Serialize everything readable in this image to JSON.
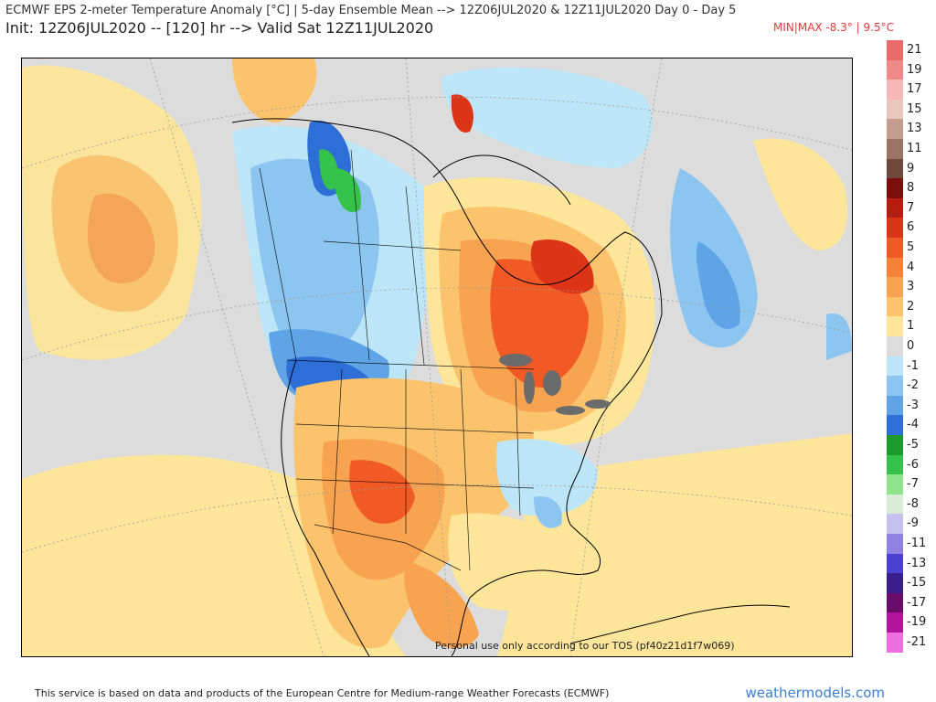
{
  "header": {
    "title": "ECMWF EPS 2-meter Temperature Anomaly [°C] | 5-day Ensemble Mean --> 12Z06JUL2020 & 12Z11JUL2020   Day 0 - Day 5",
    "subtitle": "Init: 12Z06JUL2020 -- [120] hr --> Valid Sat 12Z11JUL2020",
    "minmax": "MIN|MAX -8.3° | 9.5°C"
  },
  "map": {
    "watermark": "Personal use only according to our TOS (pf40z21d1f7w069)",
    "colors": {
      "land_neutral": "#dcdcdc",
      "ocean_neutral": "#dcdcdc",
      "border": "#000000",
      "lake": "#6b6b6b"
    }
  },
  "legend": {
    "entries": [
      {
        "label": "21",
        "color": "#e86a6a"
      },
      {
        "label": "19",
        "color": "#f08a8a"
      },
      {
        "label": "17",
        "color": "#f6b7b7"
      },
      {
        "label": "15",
        "color": "#e9c7bd"
      },
      {
        "label": "13",
        "color": "#c49d8e"
      },
      {
        "label": "11",
        "color": "#9c7466"
      },
      {
        "label": "9",
        "color": "#6f4a3c"
      },
      {
        "label": "8",
        "color": "#7d0e0e"
      },
      {
        "label": "7",
        "color": "#b51c12"
      },
      {
        "label": "6",
        "color": "#dd3418"
      },
      {
        "label": "5",
        "color": "#f25a25"
      },
      {
        "label": "4",
        "color": "#f58237"
      },
      {
        "label": "3",
        "color": "#f7a34f"
      },
      {
        "label": "2",
        "color": "#fbc36c"
      },
      {
        "label": "1",
        "color": "#fde69a"
      },
      {
        "label": "0",
        "color": "#dcdcdc"
      },
      {
        "label": "-1",
        "color": "#bce6f7"
      },
      {
        "label": "-2",
        "color": "#8cc6f0"
      },
      {
        "label": "-3",
        "color": "#5ea4e6"
      },
      {
        "label": "-4",
        "color": "#2d6ed7"
      },
      {
        "label": "-5",
        "color": "#1c9a2c"
      },
      {
        "label": "-6",
        "color": "#35c24a"
      },
      {
        "label": "-7",
        "color": "#8fe38c"
      },
      {
        "label": "-8",
        "color": "#d8ecd8"
      },
      {
        "label": "-9",
        "color": "#c6c0ef"
      },
      {
        "label": "-11",
        "color": "#8f82e2"
      },
      {
        "label": "-13",
        "color": "#4d3fcf"
      },
      {
        "label": "-15",
        "color": "#3a1f8c"
      },
      {
        "label": "-17",
        "color": "#6a0c6a"
      },
      {
        "label": "-19",
        "color": "#b3149e"
      },
      {
        "label": "-21",
        "color": "#f06fe0"
      }
    ]
  },
  "footer": {
    "attribution": "This service is based on data and products of the European Centre for Medium-range Weather Forecasts (ECMWF)",
    "site": "weathermodels.com"
  }
}
